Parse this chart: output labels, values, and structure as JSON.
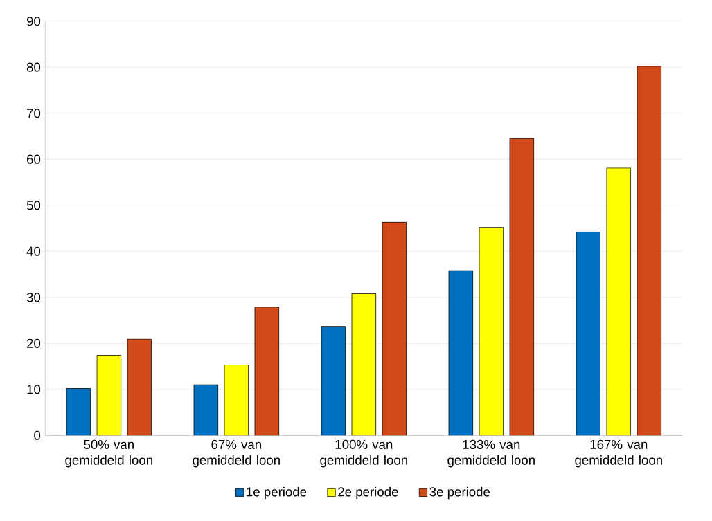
{
  "chart_data": {
    "type": "bar",
    "categories": [
      "50% van gemiddeld loon",
      "67% van gemiddeld loon",
      "100% van gemiddeld loon",
      "133% van gemiddeld loon",
      "167% van gemiddeld loon"
    ],
    "series": [
      {
        "name": "1e periode",
        "color": "#0070c0",
        "values": [
          10.2,
          11.0,
          23.7,
          35.8,
          44.2
        ]
      },
      {
        "name": "2e periode",
        "color": "#ffff00",
        "values": [
          17.4,
          15.3,
          30.8,
          45.2,
          58.1
        ]
      },
      {
        "name": "3e periode",
        "color": "#d34a1a",
        "values": [
          20.9,
          27.9,
          46.3,
          64.5,
          80.2
        ]
      }
    ],
    "ylim": [
      0,
      90
    ],
    "yticks": [
      0,
      10,
      20,
      30,
      40,
      50,
      60,
      70,
      80,
      90
    ],
    "grid": "y",
    "legend": "bottom"
  }
}
